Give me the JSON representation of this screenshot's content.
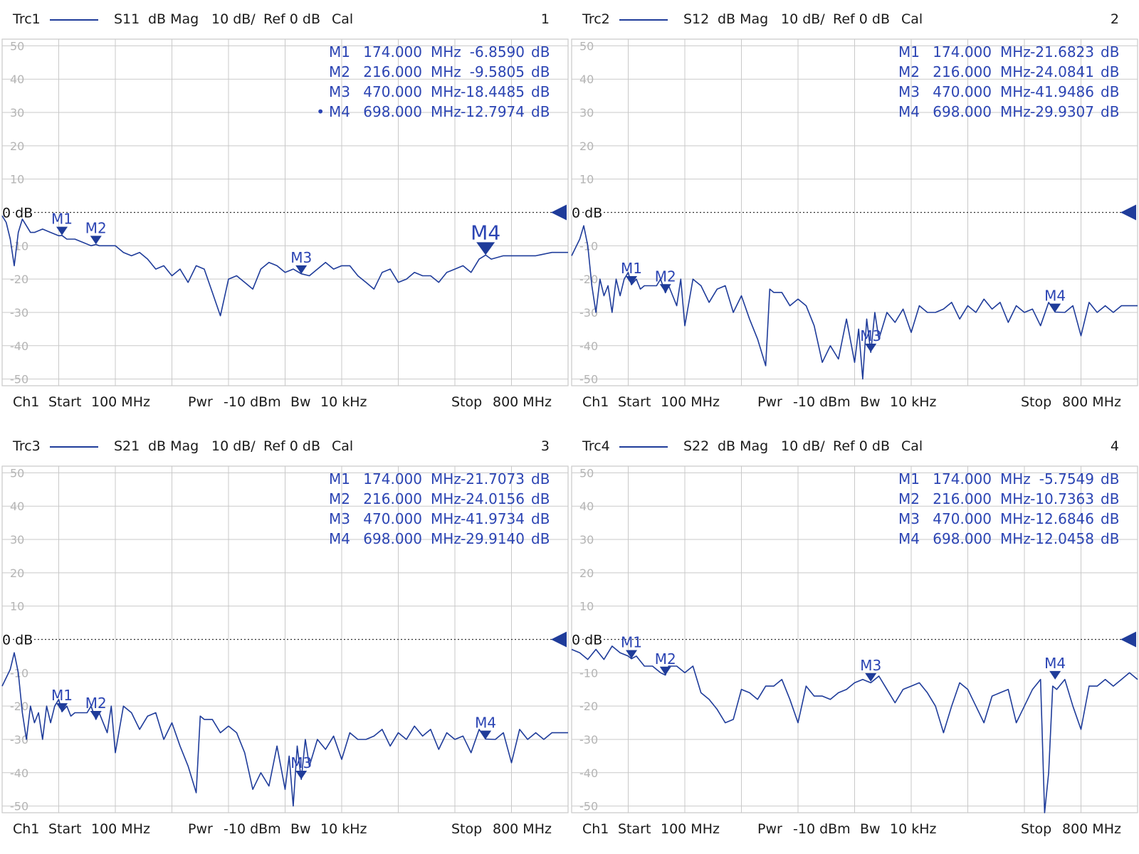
{
  "colors": {
    "trace": "#1f3c9a",
    "marker_text": "#2b44b3",
    "grid": "#c9c9c9",
    "ref_line": "#333333"
  },
  "icons": {
    "ref_marker": "triangle-left-icon",
    "marker": "triangle-down-icon"
  },
  "chart_data": [
    {
      "type": "line",
      "header": {
        "trace": "Trc1",
        "param": "S11",
        "format": "dB Mag",
        "scale": "10 dB/",
        "ref": "Ref 0 dB",
        "cal": "Cal",
        "number": "1"
      },
      "footer": {
        "channel": "Ch1",
        "start_label": "Start",
        "start_value": "100 MHz",
        "pwr_label": "Pwr",
        "pwr_value": "-10 dBm",
        "bw_label": "Bw",
        "bw_value": "10 kHz",
        "stop_label": "Stop",
        "stop_value": "800 MHz"
      },
      "xlim": [
        100,
        800
      ],
      "ylim": [
        -52,
        52
      ],
      "y_ticks": [
        50,
        40,
        30,
        20,
        10,
        -10,
        -20,
        -30,
        -40,
        -50
      ],
      "y_tick_labels": [
        "50",
        "40",
        "30",
        "20",
        "10",
        "-10",
        "-20",
        "-30",
        "-40",
        "-50"
      ],
      "ref_label": "0 dB",
      "grid": true,
      "markers": [
        {
          "name": "M1",
          "freq_text": "174.000",
          "unit": "MHz",
          "value_text": "-6.8590",
          "value_unit": "dB",
          "x": 174,
          "y": -6.859,
          "active": false
        },
        {
          "name": "M2",
          "freq_text": "216.000",
          "unit": "MHz",
          "value_text": "-9.5805",
          "value_unit": "dB",
          "x": 216,
          "y": -9.5805,
          "active": false
        },
        {
          "name": "M3",
          "freq_text": "470.000",
          "unit": "MHz",
          "value_text": "-18.4485",
          "value_unit": "dB",
          "x": 470,
          "y": -18.4485,
          "active": false
        },
        {
          "name": "M4",
          "freq_text": "698.000",
          "unit": "MHz",
          "value_text": "-12.7974",
          "value_unit": "dB",
          "x": 698,
          "y": -12.7974,
          "active": true,
          "prefix": "•"
        }
      ],
      "series": [
        {
          "x": [
            100,
            105,
            110,
            115,
            120,
            125,
            130,
            135,
            140,
            150,
            160,
            170,
            174,
            180,
            190,
            200,
            210,
            216,
            220,
            230,
            240,
            250,
            260,
            270,
            280,
            290,
            300,
            310,
            320,
            330,
            340,
            350,
            360,
            370,
            380,
            390,
            400,
            410,
            420,
            430,
            440,
            450,
            460,
            470,
            480,
            490,
            500,
            510,
            520,
            530,
            540,
            550,
            560,
            570,
            580,
            590,
            600,
            610,
            620,
            630,
            640,
            650,
            660,
            670,
            680,
            690,
            698,
            705,
            720,
            740,
            760,
            780,
            800
          ],
          "y": [
            -1,
            -3,
            -8,
            -16,
            -6,
            -2,
            -4,
            -6,
            -6,
            -5,
            -6,
            -7,
            -6.9,
            -8,
            -8,
            -9,
            -10,
            -9.6,
            -10,
            -10,
            -10,
            -12,
            -13,
            -12,
            -14,
            -17,
            -16,
            -19,
            -17,
            -21,
            -16,
            -17,
            -24,
            -31,
            -20,
            -19,
            -21,
            -23,
            -17,
            -15,
            -16,
            -18,
            -17,
            -18.4,
            -19,
            -17,
            -15,
            -17,
            -16,
            -16,
            -19,
            -21,
            -23,
            -18,
            -17,
            -21,
            -20,
            -18,
            -19,
            -19,
            -21,
            -18,
            -17,
            -16,
            -18,
            -14,
            -12.8,
            -14,
            -13,
            -13,
            -13,
            -12,
            -12
          ]
        }
      ]
    },
    {
      "type": "line",
      "header": {
        "trace": "Trc2",
        "param": "S12",
        "format": "dB Mag",
        "scale": "10 dB/",
        "ref": "Ref 0 dB",
        "cal": "Cal",
        "number": "2"
      },
      "footer": {
        "channel": "Ch1",
        "start_label": "Start",
        "start_value": "100 MHz",
        "pwr_label": "Pwr",
        "pwr_value": "-10 dBm",
        "bw_label": "Bw",
        "bw_value": "10 kHz",
        "stop_label": "Stop",
        "stop_value": "800 MHz"
      },
      "xlim": [
        100,
        800
      ],
      "ylim": [
        -52,
        52
      ],
      "y_ticks": [
        50,
        40,
        30,
        20,
        10,
        -10,
        -20,
        -30,
        -40,
        -50
      ],
      "y_tick_labels": [
        "50",
        "40",
        "30",
        "20",
        "10",
        "-10",
        "-20",
        "-30",
        "-40",
        "-50"
      ],
      "ref_label": "0 dB",
      "grid": true,
      "markers": [
        {
          "name": "M1",
          "freq_text": "174.000",
          "unit": "MHz",
          "value_text": "-21.6823",
          "value_unit": "dB",
          "x": 174,
          "y": -21.6823,
          "active": false
        },
        {
          "name": "M2",
          "freq_text": "216.000",
          "unit": "MHz",
          "value_text": "-24.0841",
          "value_unit": "dB",
          "x": 216,
          "y": -24.0841,
          "active": false
        },
        {
          "name": "M3",
          "freq_text": "470.000",
          "unit": "MHz",
          "value_text": "-41.9486",
          "value_unit": "dB",
          "x": 470,
          "y": -41.9486,
          "active": false
        },
        {
          "name": "M4",
          "freq_text": "698.000",
          "unit": "MHz",
          "value_text": "-29.9307",
          "value_unit": "dB",
          "x": 698,
          "y": -29.9307,
          "active": false
        }
      ],
      "series": [
        {
          "x": [
            100,
            110,
            115,
            120,
            125,
            130,
            135,
            140,
            145,
            150,
            155,
            160,
            165,
            170,
            174,
            180,
            185,
            190,
            200,
            205,
            210,
            216,
            220,
            230,
            235,
            240,
            250,
            260,
            270,
            280,
            290,
            300,
            310,
            320,
            330,
            340,
            345,
            350,
            360,
            370,
            380,
            390,
            400,
            410,
            420,
            430,
            440,
            450,
            455,
            460,
            465,
            470,
            475,
            480,
            490,
            500,
            510,
            520,
            530,
            540,
            550,
            560,
            570,
            580,
            590,
            600,
            610,
            620,
            630,
            640,
            650,
            660,
            670,
            680,
            690,
            698,
            710,
            720,
            730,
            740,
            750,
            760,
            770,
            780,
            790,
            800
          ],
          "y": [
            -13,
            -8,
            -4,
            -10,
            -22,
            -30,
            -20,
            -25,
            -22,
            -30,
            -20,
            -25,
            -20,
            -18,
            -21.7,
            -20,
            -23,
            -22,
            -22,
            -22,
            -20,
            -24.1,
            -22,
            -28,
            -20,
            -34,
            -20,
            -22,
            -27,
            -23,
            -22,
            -30,
            -25,
            -32,
            -38,
            -46,
            -23,
            -24,
            -24,
            -28,
            -26,
            -28,
            -34,
            -45,
            -40,
            -44,
            -32,
            -45,
            -35,
            -50,
            -32,
            -42,
            -30,
            -38,
            -30,
            -33,
            -29,
            -36,
            -28,
            -30,
            -30,
            -29,
            -27,
            -32,
            -28,
            -30,
            -26,
            -29,
            -27,
            -33,
            -28,
            -30,
            -29,
            -34,
            -27,
            -29.9,
            -30,
            -28,
            -37,
            -27,
            -30,
            -28,
            -30,
            -28,
            -28,
            -28
          ]
        }
      ]
    },
    {
      "type": "line",
      "header": {
        "trace": "Trc3",
        "param": "S21",
        "format": "dB Mag",
        "scale": "10 dB/",
        "ref": "Ref 0 dB",
        "cal": "Cal",
        "number": "3"
      },
      "footer": {
        "channel": "Ch1",
        "start_label": "Start",
        "start_value": "100 MHz",
        "pwr_label": "Pwr",
        "pwr_value": "-10 dBm",
        "bw_label": "Bw",
        "bw_value": "10 kHz",
        "stop_label": "Stop",
        "stop_value": "800 MHz"
      },
      "xlim": [
        100,
        800
      ],
      "ylim": [
        -52,
        52
      ],
      "y_ticks": [
        50,
        40,
        30,
        20,
        10,
        -10,
        -20,
        -30,
        -40,
        -50
      ],
      "y_tick_labels": [
        "50",
        "40",
        "30",
        "20",
        "10",
        "-10",
        "-20",
        "-30",
        "-40",
        "-50"
      ],
      "ref_label": "0 dB",
      "grid": true,
      "markers": [
        {
          "name": "M1",
          "freq_text": "174.000",
          "unit": "MHz",
          "value_text": "-21.7073",
          "value_unit": "dB",
          "x": 174,
          "y": -21.7073,
          "active": false
        },
        {
          "name": "M2",
          "freq_text": "216.000",
          "unit": "MHz",
          "value_text": "-24.0156",
          "value_unit": "dB",
          "x": 216,
          "y": -24.0156,
          "active": false
        },
        {
          "name": "M3",
          "freq_text": "470.000",
          "unit": "MHz",
          "value_text": "-41.9734",
          "value_unit": "dB",
          "x": 470,
          "y": -41.9734,
          "active": false
        },
        {
          "name": "M4",
          "freq_text": "698.000",
          "unit": "MHz",
          "value_text": "-29.9140",
          "value_unit": "dB",
          "x": 698,
          "y": -29.914,
          "active": false
        }
      ],
      "series": [
        {
          "x": [
            100,
            110,
            115,
            120,
            125,
            130,
            135,
            140,
            145,
            150,
            155,
            160,
            165,
            170,
            174,
            180,
            185,
            190,
            200,
            205,
            210,
            216,
            220,
            230,
            235,
            240,
            250,
            260,
            270,
            280,
            290,
            300,
            310,
            320,
            330,
            340,
            345,
            350,
            360,
            370,
            380,
            390,
            400,
            410,
            420,
            430,
            440,
            450,
            455,
            460,
            465,
            470,
            475,
            480,
            490,
            500,
            510,
            520,
            530,
            540,
            550,
            560,
            570,
            580,
            590,
            600,
            610,
            620,
            630,
            640,
            650,
            660,
            670,
            680,
            690,
            698,
            710,
            720,
            730,
            740,
            750,
            760,
            770,
            780,
            790,
            800
          ],
          "y": [
            -14,
            -9,
            -4,
            -10,
            -22,
            -30,
            -20,
            -25,
            -22,
            -30,
            -20,
            -25,
            -20,
            -18,
            -21.7,
            -20,
            -23,
            -22,
            -22,
            -22,
            -20,
            -24,
            -22,
            -28,
            -20,
            -34,
            -20,
            -22,
            -27,
            -23,
            -22,
            -30,
            -25,
            -32,
            -38,
            -46,
            -23,
            -24,
            -24,
            -28,
            -26,
            -28,
            -34,
            -45,
            -40,
            -44,
            -32,
            -45,
            -35,
            -50,
            -32,
            -42,
            -30,
            -38,
            -30,
            -33,
            -29,
            -36,
            -28,
            -30,
            -30,
            -29,
            -27,
            -32,
            -28,
            -30,
            -26,
            -29,
            -27,
            -33,
            -28,
            -30,
            -29,
            -34,
            -27,
            -29.9,
            -30,
            -28,
            -37,
            -27,
            -30,
            -28,
            -30,
            -28,
            -28,
            -28
          ]
        }
      ]
    },
    {
      "type": "line",
      "header": {
        "trace": "Trc4",
        "param": "S22",
        "format": "dB Mag",
        "scale": "10 dB/",
        "ref": "Ref 0 dB",
        "cal": "Cal",
        "number": "4"
      },
      "footer": {
        "channel": "Ch1",
        "start_label": "Start",
        "start_value": "100 MHz",
        "pwr_label": "Pwr",
        "pwr_value": "-10 dBm",
        "bw_label": "Bw",
        "bw_value": "10 kHz",
        "stop_label": "Stop",
        "stop_value": "800 MHz"
      },
      "xlim": [
        100,
        800
      ],
      "ylim": [
        -52,
        52
      ],
      "y_ticks": [
        50,
        40,
        30,
        20,
        10,
        -10,
        -20,
        -30,
        -40,
        -50
      ],
      "y_tick_labels": [
        "50",
        "40",
        "30",
        "20",
        "10",
        "-10",
        "-20",
        "-30",
        "-40",
        "-50"
      ],
      "ref_label": "0 dB",
      "grid": true,
      "markers": [
        {
          "name": "M1",
          "freq_text": "174.000",
          "unit": "MHz",
          "value_text": "-5.7549",
          "value_unit": "dB",
          "x": 174,
          "y": -5.7549,
          "active": false
        },
        {
          "name": "M2",
          "freq_text": "216.000",
          "unit": "MHz",
          "value_text": "-10.7363",
          "value_unit": "dB",
          "x": 216,
          "y": -10.7363,
          "active": false
        },
        {
          "name": "M3",
          "freq_text": "470.000",
          "unit": "MHz",
          "value_text": "-12.6846",
          "value_unit": "dB",
          "x": 470,
          "y": -12.6846,
          "active": false
        },
        {
          "name": "M4",
          "freq_text": "698.000",
          "unit": "MHz",
          "value_text": "-12.0458",
          "value_unit": "dB",
          "x": 698,
          "y": -12.0458,
          "active": false
        }
      ],
      "series": [
        {
          "x": [
            100,
            110,
            120,
            130,
            140,
            150,
            160,
            170,
            174,
            180,
            190,
            200,
            210,
            216,
            220,
            230,
            240,
            250,
            260,
            270,
            280,
            290,
            300,
            310,
            320,
            330,
            340,
            350,
            360,
            370,
            380,
            390,
            400,
            410,
            420,
            430,
            440,
            450,
            460,
            470,
            480,
            490,
            500,
            510,
            520,
            530,
            540,
            550,
            560,
            570,
            580,
            590,
            600,
            610,
            620,
            630,
            640,
            650,
            660,
            670,
            680,
            685,
            690,
            695,
            700,
            710,
            720,
            730,
            740,
            750,
            760,
            770,
            780,
            790,
            800
          ],
          "y": [
            -3,
            -4,
            -6,
            -3,
            -6,
            -2,
            -4,
            -5,
            -5.8,
            -5,
            -8,
            -8,
            -10,
            -10.7,
            -8,
            -8,
            -10,
            -8,
            -16,
            -18,
            -21,
            -25,
            -24,
            -15,
            -16,
            -18,
            -14,
            -14,
            -12,
            -18,
            -25,
            -14,
            -17,
            -17,
            -18,
            -16,
            -15,
            -13,
            -12,
            -13,
            -11,
            -15,
            -19,
            -15,
            -14,
            -13,
            -16,
            -20,
            -28,
            -20,
            -13,
            -15,
            -20,
            -25,
            -17,
            -16,
            -15,
            -25,
            -20,
            -15,
            -12,
            -52,
            -40,
            -14,
            -15,
            -12,
            -20,
            -27,
            -14,
            -14,
            -12,
            -14,
            -12,
            -10,
            -12
          ]
        }
      ]
    }
  ]
}
